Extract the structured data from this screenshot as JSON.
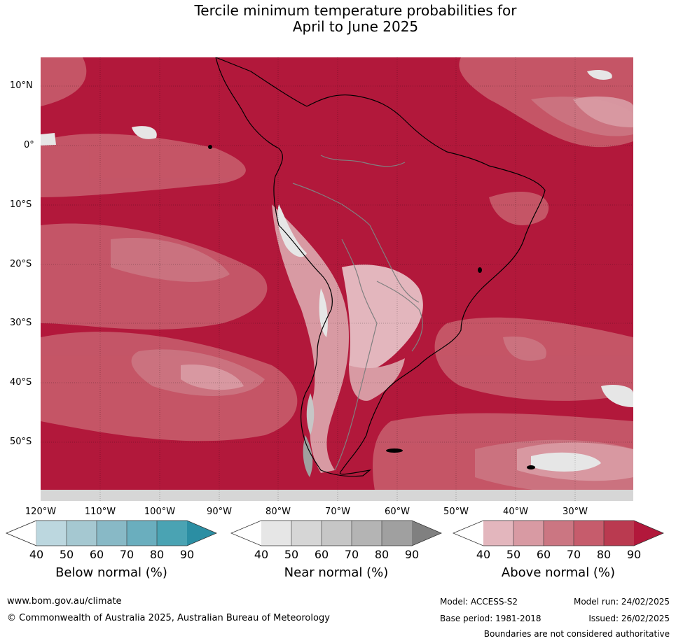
{
  "title": {
    "line1": "Tercile minimum temperature probabilities for",
    "line2": "April to June 2025"
  },
  "map": {
    "region": "South America",
    "lat_labels": [
      "10°N",
      "0°",
      "10°S",
      "20°S",
      "30°S",
      "40°S",
      "50°S"
    ],
    "lon_labels": [
      "120°W",
      "110°W",
      "100°W",
      "90°W",
      "80°W",
      "70°W",
      "60°W",
      "50°W",
      "40°W",
      "30°W"
    ],
    "dominant_category": "Above normal",
    "dominant_color": "#b2183b"
  },
  "legend": [
    {
      "label": "Below normal (%)",
      "ticks": [
        "40",
        "50",
        "60",
        "70",
        "80",
        "90"
      ],
      "colors": [
        "#ffffff",
        "#bcd7df",
        "#a5c8d1",
        "#88b9c6",
        "#6aaebe",
        "#4aa3b3",
        "#2b8ea3"
      ]
    },
    {
      "label": "Near normal (%)",
      "ticks": [
        "40",
        "50",
        "60",
        "70",
        "80",
        "90"
      ],
      "colors": [
        "#ffffff",
        "#e6e6e6",
        "#d6d6d6",
        "#c6c6c6",
        "#b4b4b4",
        "#a0a0a0",
        "#808080"
      ]
    },
    {
      "label": "Above normal (%)",
      "ticks": [
        "40",
        "50",
        "60",
        "70",
        "80",
        "90"
      ],
      "colors": [
        "#ffffff",
        "#e3b6bd",
        "#d89aa3",
        "#cb7682",
        "#c65c6c",
        "#ba3a50",
        "#b2183b"
      ]
    }
  ],
  "footer": {
    "website": "www.bom.gov.au/climate",
    "copyright": "© Commonwealth of Australia 2025, Australian Bureau of Meteorology",
    "model": "Model: ACCESS-S2",
    "base_period": "Base period: 1981-2018",
    "model_run": "Model run: 24/02/2025",
    "issued": "Issued: 26/02/2025",
    "disclaimer": "Boundaries are not considered authoritative"
  }
}
